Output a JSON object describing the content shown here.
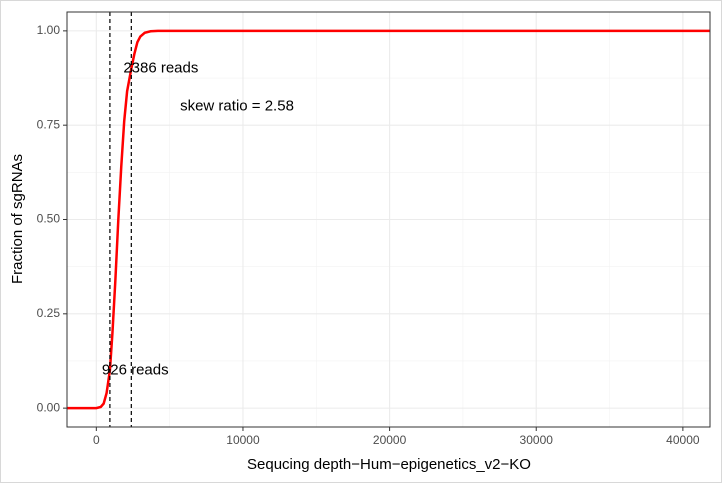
{
  "chart_data": {
    "type": "line",
    "x_label": "Sequcing depth−Hum−epigenetics_v2−KO",
    "y_label": "Fraction of sgRNAs",
    "x": [
      -2000,
      0,
      300,
      500,
      700,
      926,
      1100,
      1300,
      1500,
      1700,
      1900,
      2100,
      2386,
      2600,
      2800,
      3000,
      3300,
      3700,
      4200,
      6000,
      41850
    ],
    "series": [
      {
        "color": "#ff0000",
        "values": [
          0,
          0,
          0.003,
          0.012,
          0.04,
          0.1,
          0.2,
          0.34,
          0.5,
          0.64,
          0.76,
          0.84,
          0.9,
          0.94,
          0.97,
          0.985,
          0.995,
          0.999,
          1,
          1,
          1
        ]
      }
    ],
    "vlines": [
      {
        "x": 926,
        "label": "926 reads"
      },
      {
        "x": 2386,
        "label": "2386 reads"
      }
    ],
    "annotation": "skew ratio = 2.58",
    "xlim": [
      -2000,
      41850
    ],
    "ylim": [
      -0.05,
      1.05
    ],
    "xticks": [
      0,
      10000,
      20000,
      30000,
      40000
    ],
    "yticks": [
      {
        "value": 0,
        "label": "0.00"
      },
      {
        "value": 0.25,
        "label": "0.25"
      },
      {
        "value": 0.5,
        "label": "0.50"
      },
      {
        "value": 0.75,
        "label": "0.75"
      },
      {
        "value": 1,
        "label": "1.00"
      }
    ],
    "grid": true
  }
}
